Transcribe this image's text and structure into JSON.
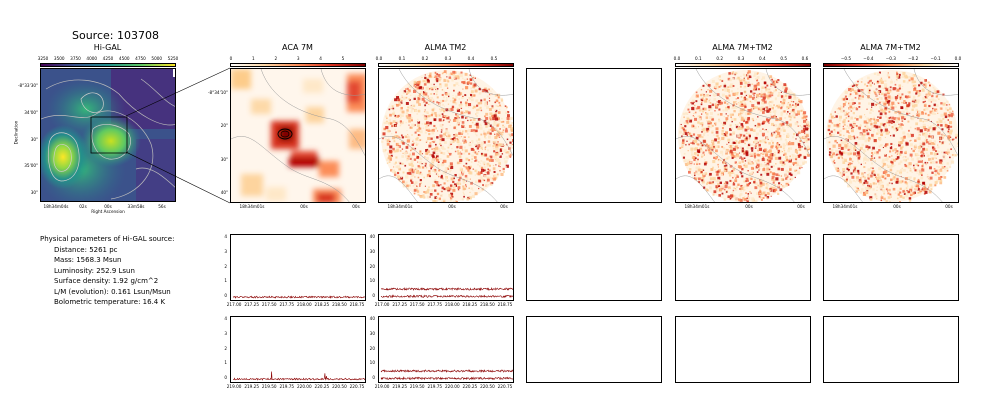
{
  "figure_title": "Source: 103708",
  "params": {
    "heading": "Physical parameters of Hi-GAL source:",
    "lines": [
      "Distance: 5261 pc",
      "Mass: 1568.3 Msun",
      "Luminosity: 252.9 Lsun",
      "Surface density: 1.92 g/cm^2",
      "L/M (evolution): 0.161 Lsun/Msun",
      "Bolometric temperature: 16.4 K"
    ]
  },
  "colors": {
    "viridis": [
      "#440154",
      "#3b528b",
      "#21918c",
      "#5ec962",
      "#fde725"
    ],
    "orrd": [
      "#ffffff",
      "#fdd9a8",
      "#fc8d59",
      "#d7301f",
      "#7f0000"
    ],
    "spectrum": "#8b0000",
    "contour": "#9a9a9a"
  },
  "chart_data": [
    {
      "type": "heatmap",
      "panel": "higal",
      "title": "Hi-GAL",
      "colormap": "viridis",
      "colorbar_ticks": [
        "3250",
        "3500",
        "3750",
        "4000",
        "4250",
        "4500",
        "4750",
        "5000",
        "5250"
      ],
      "xlabel": "Right Ascension",
      "ylabel": "Declination",
      "x_ticks": [
        "18h34m04s",
        "02s",
        "00s",
        "33m58s",
        "56s"
      ],
      "y_ticks": [
        "-8°33'30\"",
        "34'00\"",
        "30\"",
        "35'00\"",
        "30\""
      ]
    },
    {
      "type": "heatmap",
      "panel": "aca7m",
      "title": "ACA 7M",
      "colormap": "OrRd",
      "colorbar_ticks": [
        "0",
        "1",
        "2",
        "3",
        "4",
        "5"
      ],
      "x_ticks": [
        "18h34m01s",
        "00s",
        "00s"
      ],
      "y_ticks": [
        "-8°34'10\"",
        "20\"",
        "30\"",
        "40\""
      ]
    },
    {
      "type": "heatmap",
      "panel": "tm2",
      "title": "ALMA TM2",
      "colormap": "OrRd",
      "colorbar_ticks": [
        "0.0",
        "0.1",
        "0.2",
        "0.3",
        "0.4",
        "0.5"
      ],
      "x_ticks": [
        "18h34m01s",
        "00s",
        "00s"
      ]
    },
    {
      "type": "heatmap",
      "panel": "7m_tm2_a",
      "title": "ALMA 7M+TM2",
      "colormap": "OrRd",
      "colorbar_ticks": [
        "0.0",
        "0.1",
        "0.2",
        "0.3",
        "0.4",
        "0.5",
        "0.6"
      ],
      "x_ticks": [
        "18h34m01s",
        "00s",
        "00s"
      ]
    },
    {
      "type": "heatmap",
      "panel": "7m_tm2_b",
      "title": "ALMA 7M+TM2",
      "colormap": "OrRd",
      "colorbar_ticks": [
        "−0.5",
        "−0.4",
        "−0.3",
        "−0.2",
        "−0.1",
        "0.0"
      ],
      "x_ticks": [
        "18h34m01s",
        "00s",
        "00s"
      ]
    },
    {
      "type": "line",
      "panel": "spec_aca_1",
      "x_ticks": [
        "217.00",
        "217.25",
        "217.50",
        "217.75",
        "218.00",
        "218.25",
        "218.50",
        "218.75"
      ],
      "y_ticks": [
        "0",
        "1",
        "2",
        "3",
        "4"
      ],
      "xlim": [
        216.97,
        218.85
      ],
      "ylim": [
        -0.2,
        4.1
      ],
      "series": [
        {
          "level": 0.0,
          "noise": 0.06
        }
      ]
    },
    {
      "type": "line",
      "panel": "spec_tm2_1",
      "x_ticks": [
        "217.00",
        "217.25",
        "217.50",
        "217.75",
        "218.00",
        "218.25",
        "218.50",
        "218.75"
      ],
      "y_ticks": [
        "0",
        "10",
        "20",
        "30",
        "40"
      ],
      "xlim": [
        216.97,
        218.85
      ],
      "ylim": [
        -2,
        41
      ],
      "series": [
        {
          "level": 5.5,
          "noise": 0.7
        },
        {
          "level": 0.5,
          "noise": 0.7
        }
      ]
    },
    {
      "type": "line",
      "panel": "spec_aca_2",
      "x_ticks": [
        "219.00",
        "219.25",
        "219.50",
        "219.75",
        "220.00",
        "220.25",
        "220.50",
        "220.75"
      ],
      "y_ticks": [
        "0",
        "1",
        "2",
        "3",
        "4"
      ],
      "xlim": [
        218.97,
        220.85
      ],
      "ylim": [
        -0.2,
        4.1
      ],
      "series": [
        {
          "level": 0.0,
          "noise": 0.06,
          "spikes": [
            [
              219.52,
              0.55
            ],
            [
              220.28,
              0.35
            ],
            [
              220.3,
              0.25
            ]
          ]
        }
      ]
    },
    {
      "type": "line",
      "panel": "spec_tm2_2",
      "x_ticks": [
        "219.00",
        "219.25",
        "219.50",
        "219.75",
        "220.00",
        "220.25",
        "220.50",
        "220.75"
      ],
      "y_ticks": [
        "0",
        "10",
        "20",
        "30",
        "40"
      ],
      "xlim": [
        218.97,
        220.85
      ],
      "ylim": [
        -2,
        41
      ],
      "series": [
        {
          "level": 5.5,
          "noise": 0.7
        },
        {
          "level": 0.5,
          "noise": 0.7
        }
      ]
    }
  ]
}
